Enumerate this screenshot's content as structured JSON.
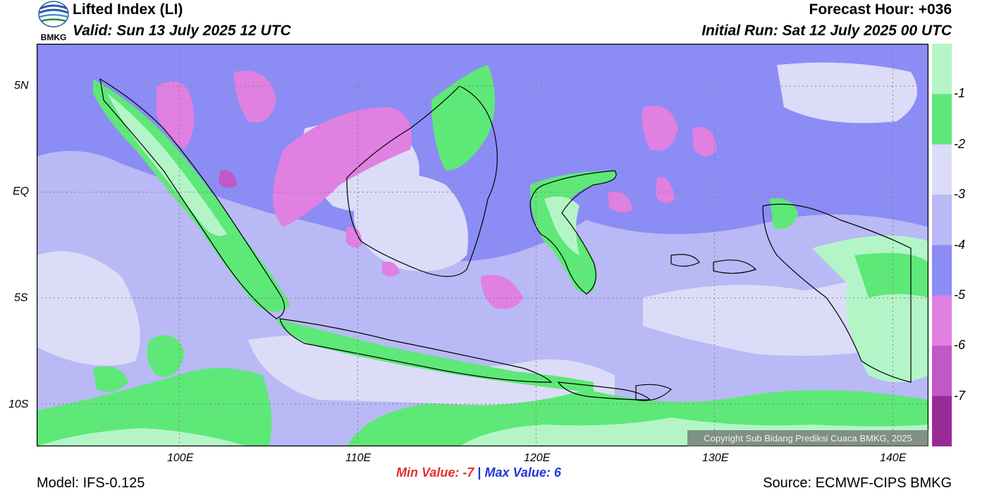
{
  "header": {
    "title": "Lifted Index (LI)",
    "valid": "Valid: Sun 13 July 2025 12 UTC",
    "forecast_hour": "Forecast Hour: +036",
    "initial_run": "Initial Run: Sat 12 July 2025 00 UTC"
  },
  "logo": {
    "text": "BMKG",
    "icon": "bmkg-logo-icon"
  },
  "map": {
    "lat_labels": [
      "5N",
      "EQ",
      "5S",
      "10S"
    ],
    "lat_values": [
      5,
      0,
      -5,
      -10
    ],
    "lon_labels": [
      "100E",
      "110E",
      "120E",
      "130E",
      "140E"
    ],
    "lon_values": [
      100,
      110,
      120,
      130,
      140
    ],
    "lon_range": [
      92,
      142
    ],
    "lat_range": [
      -12,
      7
    ],
    "gridlines": true
  },
  "colorbar": {
    "tick_labels": [
      "-1",
      "-2",
      "-3",
      "-4",
      "-5",
      "-6",
      "-7"
    ],
    "levels": [
      0,
      -1,
      -2,
      -3,
      -4,
      -5,
      -6,
      -7,
      -8
    ],
    "colors": [
      "#b4f5c8",
      "#5ee878",
      "#dcdcf8",
      "#b9b9f5",
      "#8c8cf5",
      "#e080e0",
      "#c058c8",
      "#982a98"
    ]
  },
  "stats": {
    "min_label": "Min Value:",
    "min_value": "-7",
    "separator": "|",
    "max_label": "Max Value:",
    "max_value": "6"
  },
  "footer": {
    "model": "Model: IFS-0.125",
    "source": "Source: ECMWF-CIPS BMKG",
    "copyright": "Copyright Sub Bidang Prediksi Cuaca BMKG, 2025"
  }
}
